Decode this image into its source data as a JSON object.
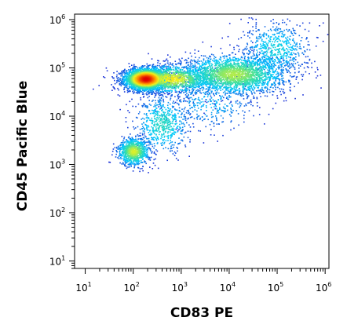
{
  "chart_data": {
    "type": "scatter",
    "style": "flow-cytometry density dot plot",
    "xlabel": "CD83 PE",
    "ylabel": "CD45 Pacific Blue",
    "x_scale": "log",
    "y_scale": "log",
    "xlim": [
      6,
      1200000
    ],
    "ylim": [
      7,
      1300000
    ],
    "x_ticks": [
      {
        "base": "10",
        "exp": "1",
        "value": 10
      },
      {
        "base": "10",
        "exp": "2",
        "value": 100
      },
      {
        "base": "10",
        "exp": "3",
        "value": 1000
      },
      {
        "base": "10",
        "exp": "4",
        "value": 10000
      },
      {
        "base": "10",
        "exp": "5",
        "value": 100000
      },
      {
        "base": "10",
        "exp": "6",
        "value": 1000000
      }
    ],
    "y_ticks": [
      {
        "base": "10",
        "exp": "1",
        "value": 10
      },
      {
        "base": "10",
        "exp": "2",
        "value": 100
      },
      {
        "base": "10",
        "exp": "3",
        "value": 1000
      },
      {
        "base": "10",
        "exp": "4",
        "value": 10000
      },
      {
        "base": "10",
        "exp": "5",
        "value": 100000
      },
      {
        "base": "10",
        "exp": "6",
        "value": 1000000
      }
    ],
    "grid": false,
    "legend": "none",
    "density_colors": [
      "#1a2bd6",
      "#00c8ff",
      "#3be0a0",
      "#f2f21a",
      "#ff8c00",
      "#e00000"
    ],
    "populations": [
      {
        "center_x": 180,
        "center_y": 60000,
        "spread_x_log": 0.22,
        "spread_y_log": 0.11,
        "weight": 0.32,
        "peak_density": 1.0
      },
      {
        "center_x": 600,
        "center_y": 60000,
        "spread_x_log": 0.45,
        "spread_y_log": 0.14,
        "weight": 0.14,
        "peak_density": 0.55
      },
      {
        "center_x": 12000,
        "center_y": 75000,
        "spread_x_log": 0.55,
        "spread_y_log": 0.2,
        "weight": 0.26,
        "peak_density": 0.45
      },
      {
        "center_x": 90000,
        "center_y": 250000,
        "spread_x_log": 0.35,
        "spread_y_log": 0.28,
        "weight": 0.07,
        "peak_density": 0.2
      },
      {
        "center_x": 100,
        "center_y": 1900,
        "spread_x_log": 0.16,
        "spread_y_log": 0.14,
        "weight": 0.1,
        "peak_density": 0.5
      },
      {
        "center_x": 400,
        "center_y": 7000,
        "spread_x_log": 0.28,
        "spread_y_log": 0.3,
        "weight": 0.07,
        "peak_density": 0.25
      },
      {
        "center_x": 4000,
        "center_y": 20000,
        "spread_x_log": 0.5,
        "spread_y_log": 0.3,
        "weight": 0.04,
        "peak_density": 0.12
      }
    ]
  }
}
